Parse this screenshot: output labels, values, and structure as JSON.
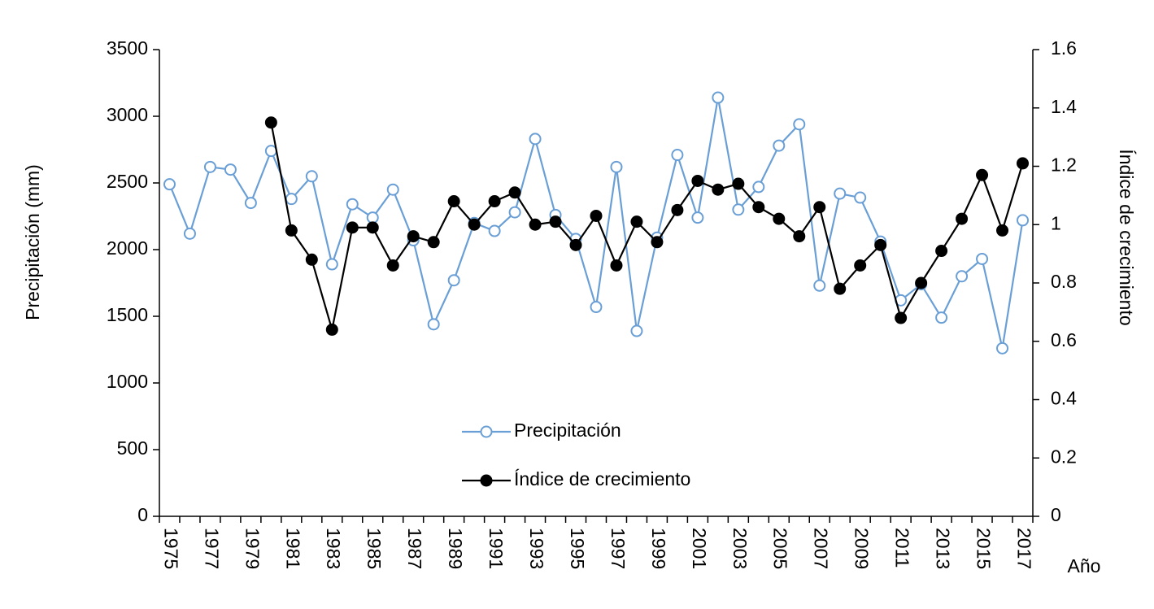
{
  "chart_data": {
    "type": "line",
    "xlabel": "Año",
    "ylabel": "Precipitación (mm)",
    "y2label": "Índice de crecimiento",
    "categories": [
      "1975",
      null,
      "1977",
      null,
      "1979",
      null,
      "1981",
      null,
      "1983",
      null,
      "1985",
      null,
      "1987",
      null,
      "1989",
      null,
      "1991",
      null,
      "1993",
      null,
      "1995",
      null,
      "1997",
      null,
      "1999",
      null,
      "2001",
      null,
      "2003",
      null,
      "2005",
      null,
      "2007",
      null,
      "2009",
      null,
      "2011",
      null,
      "2013",
      null,
      "2015",
      null,
      "2017"
    ],
    "series": [
      {
        "name": "Precipitación",
        "color": "#6a9fd6",
        "marker": "hollow",
        "values": [
          2490,
          2120,
          2620,
          2600,
          2350,
          2740,
          2380,
          2550,
          1890,
          2340,
          2240,
          2450,
          2070,
          1440,
          1770,
          2200,
          2140,
          2280,
          2830,
          2260,
          2080,
          1570,
          2620,
          1390,
          2090,
          2710,
          2240,
          3140,
          2300,
          2470,
          2780,
          2940,
          1730,
          2420,
          2390,
          2060,
          1620,
          1740,
          1490,
          1800,
          1930,
          1260,
          2220
        ]
      },
      {
        "name": "Índice de crecimiento",
        "color": "#000000",
        "marker": "filled",
        "axis": "y2",
        "values": [
          null,
          null,
          null,
          null,
          null,
          1.35,
          0.98,
          0.88,
          0.64,
          0.99,
          0.99,
          0.86,
          0.96,
          0.94,
          1.08,
          1.0,
          1.08,
          1.11,
          1.0,
          1.01,
          0.93,
          1.03,
          0.86,
          1.01,
          0.94,
          1.05,
          1.15,
          1.12,
          1.14,
          1.06,
          1.02,
          0.96,
          1.06,
          0.78,
          0.86,
          0.93,
          0.68,
          0.8,
          0.91,
          1.02,
          1.17,
          0.98,
          1.21
        ]
      }
    ],
    "ylim": [
      0,
      3500
    ],
    "yticks": [
      0,
      500,
      1000,
      1500,
      2000,
      2500,
      3000,
      3500
    ],
    "y2lim": [
      0,
      1.6
    ],
    "y2ticks": [
      0,
      0.2,
      0.4,
      0.6,
      0.8,
      1,
      1.2,
      1.4,
      1.6
    ],
    "grid": false
  }
}
